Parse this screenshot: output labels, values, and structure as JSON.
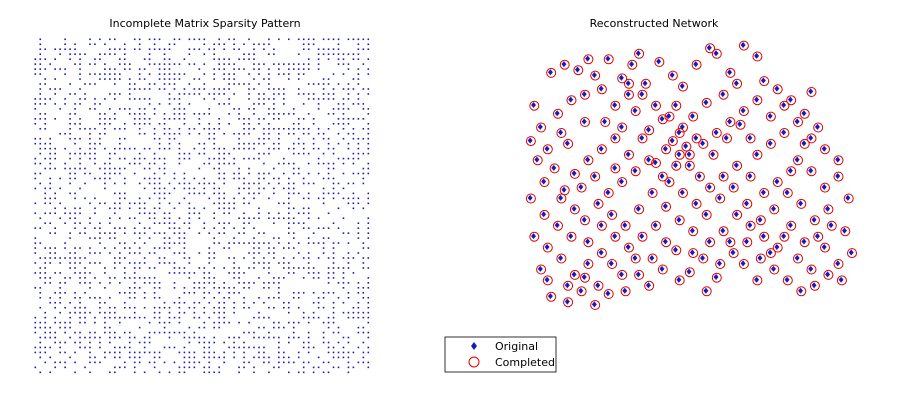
{
  "figure": {
    "background": "#ffffff",
    "marker_color_original": "#1a1ab8",
    "marker_color_completed": "#e00000"
  },
  "chart_data": [
    {
      "type": "heatmap",
      "title": "Incomplete Matrix Sparsity Pattern",
      "xlabel": "",
      "ylabel": "",
      "axes_visible": false,
      "grid": false,
      "marker_color": "#1a1ab8",
      "matrix_size": [
        68,
        68
      ],
      "pattern": "random scattered non-zero entries (roughly half of all entries observed)",
      "observed_fraction": 0.5
    },
    {
      "type": "scatter",
      "title": "Reconstructed Network",
      "xlabel": "",
      "ylabel": "",
      "axes_visible": false,
      "grid": false,
      "xlim": [
        0,
        1
      ],
      "ylim": [
        0,
        1
      ],
      "legend_position": "bottom-left",
      "series": [
        {
          "name": "Original",
          "marker": "dot",
          "color": "#1a1ab8"
        },
        {
          "name": "Completed",
          "marker": "circle",
          "color": "#e00000"
        }
      ],
      "points": [
        [
          0.06,
          0.7
        ],
        [
          0.04,
          0.78
        ],
        [
          0.11,
          0.75
        ],
        [
          0.15,
          0.8
        ],
        [
          0.09,
          0.9
        ],
        [
          0.13,
          0.93
        ],
        [
          0.12,
          0.68
        ],
        [
          0.19,
          0.82
        ],
        [
          0.17,
          0.91
        ],
        [
          0.22,
          0.89
        ],
        [
          0.26,
          0.95
        ],
        [
          0.3,
          0.88
        ],
        [
          0.33,
          0.93
        ],
        [
          0.35,
          0.97
        ],
        [
          0.2,
          0.95
        ],
        [
          0.24,
          0.84
        ],
        [
          0.28,
          0.78
        ],
        [
          0.32,
          0.82
        ],
        [
          0.37,
          0.86
        ],
        [
          0.41,
          0.94
        ],
        [
          0.45,
          0.89
        ],
        [
          0.48,
          0.85
        ],
        [
          0.52,
          0.93
        ],
        [
          0.56,
          0.99
        ],
        [
          0.58,
          0.97
        ],
        [
          0.62,
          0.9
        ],
        [
          0.66,
          1.0
        ],
        [
          0.7,
          0.96
        ],
        [
          0.72,
          0.87
        ],
        [
          0.76,
          0.84
        ],
        [
          0.8,
          0.8
        ],
        [
          0.84,
          0.75
        ],
        [
          0.86,
          0.83
        ],
        [
          0.64,
          0.86
        ],
        [
          0.6,
          0.82
        ],
        [
          0.55,
          0.79
        ],
        [
          0.51,
          0.74
        ],
        [
          0.46,
          0.78
        ],
        [
          0.42,
          0.73
        ],
        [
          0.38,
          0.69
        ],
        [
          0.34,
          0.76
        ],
        [
          0.3,
          0.7
        ],
        [
          0.25,
          0.72
        ],
        [
          0.19,
          0.72
        ],
        [
          0.14,
          0.64
        ],
        [
          0.08,
          0.62
        ],
        [
          0.03,
          0.65
        ],
        [
          0.05,
          0.58
        ],
        [
          0.1,
          0.55
        ],
        [
          0.13,
          0.47
        ],
        [
          0.07,
          0.5
        ],
        [
          0.03,
          0.44
        ],
        [
          0.16,
          0.53
        ],
        [
          0.2,
          0.58
        ],
        [
          0.24,
          0.62
        ],
        [
          0.28,
          0.55
        ],
        [
          0.32,
          0.6
        ],
        [
          0.36,
          0.66
        ],
        [
          0.4,
          0.57
        ],
        [
          0.43,
          0.62
        ],
        [
          0.45,
          0.65
        ],
        [
          0.47,
          0.68
        ],
        [
          0.49,
          0.63
        ],
        [
          0.47,
          0.6
        ],
        [
          0.5,
          0.56
        ],
        [
          0.53,
          0.52
        ],
        [
          0.57,
          0.6
        ],
        [
          0.61,
          0.66
        ],
        [
          0.65,
          0.71
        ],
        [
          0.68,
          0.66
        ],
        [
          0.7,
          0.6
        ],
        [
          0.74,
          0.64
        ],
        [
          0.78,
          0.68
        ],
        [
          0.82,
          0.58
        ],
        [
          0.86,
          0.54
        ],
        [
          0.9,
          0.48
        ],
        [
          0.94,
          0.52
        ],
        [
          0.97,
          0.44
        ],
        [
          0.91,
          0.4
        ],
        [
          0.87,
          0.36
        ],
        [
          0.83,
          0.42
        ],
        [
          0.79,
          0.46
        ],
        [
          0.75,
          0.4
        ],
        [
          0.71,
          0.36
        ],
        [
          0.67,
          0.42
        ],
        [
          0.63,
          0.48
        ],
        [
          0.59,
          0.44
        ],
        [
          0.55,
          0.38
        ],
        [
          0.51,
          0.32
        ],
        [
          0.47,
          0.36
        ],
        [
          0.43,
          0.41
        ],
        [
          0.39,
          0.46
        ],
        [
          0.35,
          0.4
        ],
        [
          0.31,
          0.34
        ],
        [
          0.27,
          0.38
        ],
        [
          0.23,
          0.42
        ],
        [
          0.19,
          0.36
        ],
        [
          0.15,
          0.3
        ],
        [
          0.11,
          0.34
        ],
        [
          0.07,
          0.38
        ],
        [
          0.04,
          0.3
        ],
        [
          0.06,
          0.18
        ],
        [
          0.09,
          0.08
        ],
        [
          0.14,
          0.06
        ],
        [
          0.18,
          0.1
        ],
        [
          0.22,
          0.05
        ],
        [
          0.26,
          0.09
        ],
        [
          0.3,
          0.16
        ],
        [
          0.34,
          0.22
        ],
        [
          0.38,
          0.12
        ],
        [
          0.42,
          0.18
        ],
        [
          0.46,
          0.25
        ],
        [
          0.5,
          0.17
        ],
        [
          0.54,
          0.22
        ],
        [
          0.58,
          0.15
        ],
        [
          0.62,
          0.28
        ],
        [
          0.66,
          0.2
        ],
        [
          0.7,
          0.14
        ],
        [
          0.74,
          0.24
        ],
        [
          0.78,
          0.3
        ],
        [
          0.82,
          0.22
        ],
        [
          0.86,
          0.18
        ],
        [
          0.9,
          0.26
        ],
        [
          0.94,
          0.2
        ],
        [
          0.98,
          0.24
        ],
        [
          0.96,
          0.32
        ],
        [
          0.92,
          0.34
        ],
        [
          0.88,
          0.3
        ],
        [
          0.84,
          0.28
        ],
        [
          0.8,
          0.34
        ],
        [
          0.76,
          0.26
        ],
        [
          0.72,
          0.3
        ],
        [
          0.68,
          0.34
        ],
        [
          0.64,
          0.38
        ],
        [
          0.6,
          0.32
        ],
        [
          0.56,
          0.28
        ],
        [
          0.52,
          0.42
        ],
        [
          0.48,
          0.46
        ],
        [
          0.44,
          0.5
        ],
        [
          0.4,
          0.34
        ],
        [
          0.36,
          0.3
        ],
        [
          0.32,
          0.26
        ],
        [
          0.28,
          0.3
        ],
        [
          0.24,
          0.24
        ],
        [
          0.2,
          0.2
        ],
        [
          0.16,
          0.16
        ],
        [
          0.12,
          0.22
        ],
        [
          0.08,
          0.26
        ],
        [
          0.18,
          0.48
        ],
        [
          0.22,
          0.52
        ],
        [
          0.26,
          0.46
        ],
        [
          0.3,
          0.5
        ],
        [
          0.34,
          0.54
        ],
        [
          0.38,
          0.58
        ],
        [
          0.42,
          0.52
        ],
        [
          0.46,
          0.56
        ],
        [
          0.5,
          0.6
        ],
        [
          0.54,
          0.64
        ],
        [
          0.58,
          0.68
        ],
        [
          0.62,
          0.72
        ],
        [
          0.66,
          0.76
        ],
        [
          0.7,
          0.8
        ],
        [
          0.74,
          0.74
        ],
        [
          0.78,
          0.78
        ],
        [
          0.82,
          0.72
        ],
        [
          0.86,
          0.66
        ],
        [
          0.9,
          0.62
        ],
        [
          0.94,
          0.58
        ],
        [
          0.88,
          0.7
        ],
        [
          0.84,
          0.64
        ],
        [
          0.8,
          0.54
        ],
        [
          0.76,
          0.5
        ],
        [
          0.72,
          0.46
        ],
        [
          0.68,
          0.52
        ],
        [
          0.64,
          0.56
        ],
        [
          0.6,
          0.52
        ],
        [
          0.56,
          0.48
        ],
        [
          0.52,
          0.66
        ],
        [
          0.48,
          0.7
        ],
        [
          0.44,
          0.74
        ],
        [
          0.4,
          0.78
        ],
        [
          0.36,
          0.82
        ],
        [
          0.32,
          0.86
        ],
        [
          0.28,
          0.66
        ],
        [
          0.24,
          0.34
        ],
        [
          0.2,
          0.28
        ],
        [
          0.16,
          0.4
        ],
        [
          0.12,
          0.44
        ],
        [
          0.08,
          0.14
        ],
        [
          0.14,
          0.12
        ],
        [
          0.19,
          0.15
        ],
        [
          0.23,
          0.12
        ],
        [
          0.27,
          0.2
        ],
        [
          0.31,
          0.1
        ],
        [
          0.35,
          0.16
        ],
        [
          0.39,
          0.22
        ],
        [
          0.43,
          0.28
        ],
        [
          0.47,
          0.14
        ],
        [
          0.51,
          0.24
        ],
        [
          0.55,
          0.1
        ],
        [
          0.59,
          0.2
        ],
        [
          0.63,
          0.24
        ],
        [
          0.67,
          0.28
        ],
        [
          0.71,
          0.22
        ],
        [
          0.75,
          0.18
        ],
        [
          0.79,
          0.14
        ],
        [
          0.83,
          0.1
        ],
        [
          0.87,
          0.12
        ],
        [
          0.91,
          0.16
        ],
        [
          0.95,
          0.14
        ]
      ]
    }
  ],
  "legend": {
    "original_label": "Original",
    "completed_label": "Completed"
  }
}
